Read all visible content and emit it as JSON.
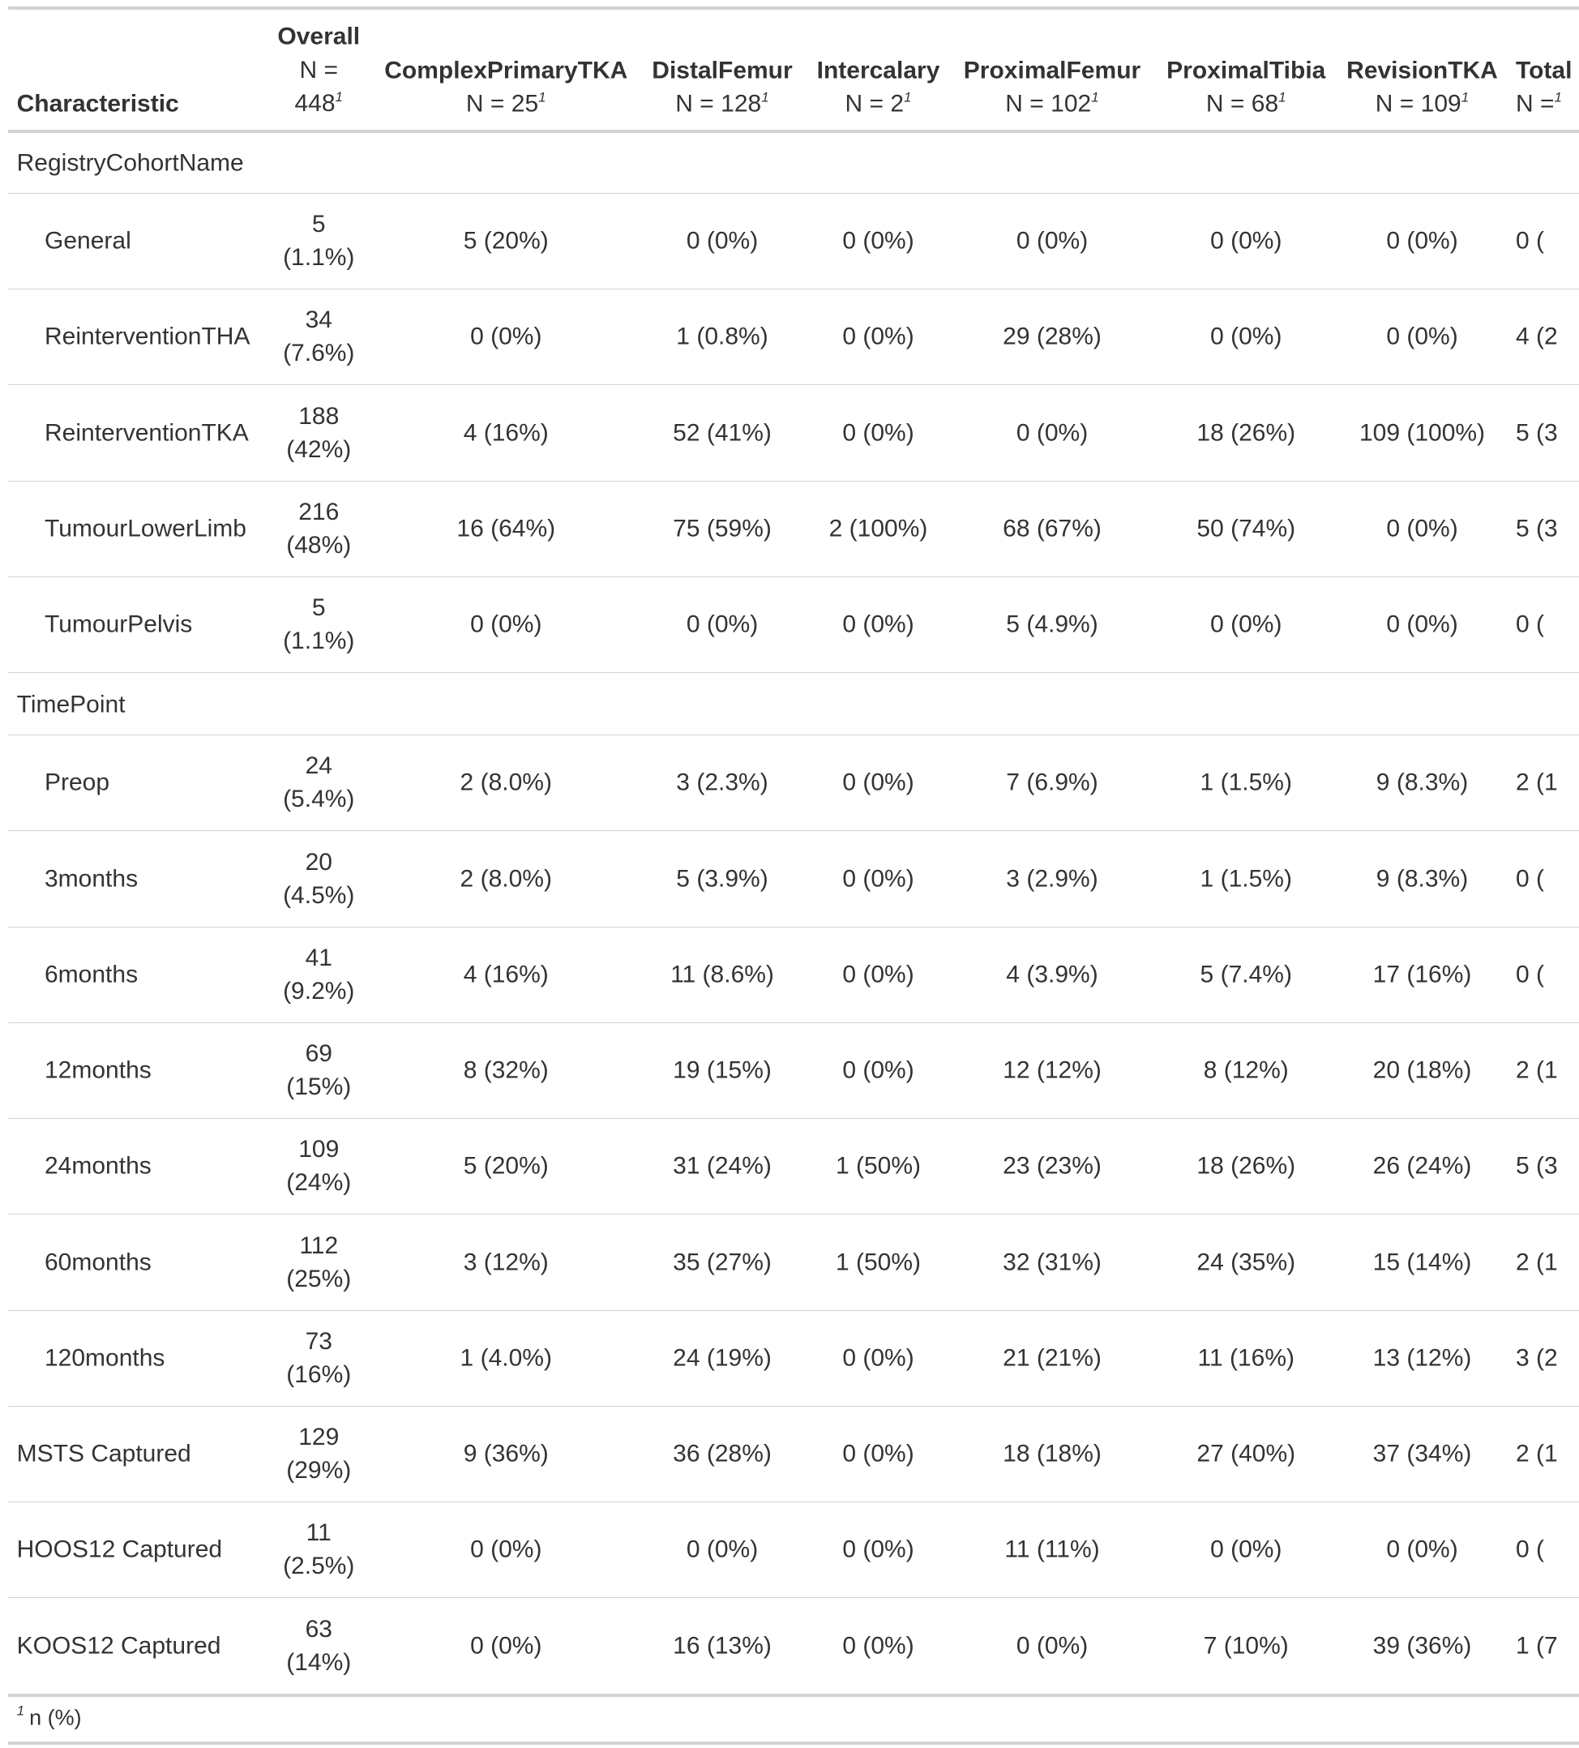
{
  "table": {
    "header": {
      "characteristic": "Characteristic",
      "columns": [
        {
          "label": "Overall",
          "n": "N = 448"
        },
        {
          "label": "ComplexPrimaryTKA",
          "n": "N = 25"
        },
        {
          "label": "DistalFemur",
          "n": "N = 128"
        },
        {
          "label": "Intercalary",
          "n": "N = 2"
        },
        {
          "label": "ProximalFemur",
          "n": "N = 102"
        },
        {
          "label": "ProximalTibia",
          "n": "N = 68"
        },
        {
          "label": "RevisionTKA",
          "n": "N = 109"
        },
        {
          "label": "Total",
          "n": "N ="
        }
      ]
    },
    "sections": [
      {
        "label": "RegistryCohortName",
        "rows": [
          {
            "label": "General",
            "cells": [
              "5 (1.1%)",
              "5 (20%)",
              "0 (0%)",
              "0 (0%)",
              "0 (0%)",
              "0 (0%)",
              "0 (0%)",
              "0 ("
            ]
          },
          {
            "label": "ReinterventionTHA",
            "cells": [
              "34 (7.6%)",
              "0 (0%)",
              "1 (0.8%)",
              "0 (0%)",
              "29 (28%)",
              "0 (0%)",
              "0 (0%)",
              "4 (2"
            ]
          },
          {
            "label": "ReinterventionTKA",
            "cells": [
              "188 (42%)",
              "4 (16%)",
              "52 (41%)",
              "0 (0%)",
              "0 (0%)",
              "18 (26%)",
              "109 (100%)",
              "5 (3"
            ]
          },
          {
            "label": "TumourLowerLimb",
            "cells": [
              "216 (48%)",
              "16 (64%)",
              "75 (59%)",
              "2 (100%)",
              "68 (67%)",
              "50 (74%)",
              "0 (0%)",
              "5 (3"
            ]
          },
          {
            "label": "TumourPelvis",
            "cells": [
              "5 (1.1%)",
              "0 (0%)",
              "0 (0%)",
              "0 (0%)",
              "5 (4.9%)",
              "0 (0%)",
              "0 (0%)",
              "0 ("
            ]
          }
        ]
      },
      {
        "label": "TimePoint",
        "rows": [
          {
            "label": "Preop",
            "cells": [
              "24 (5.4%)",
              "2 (8.0%)",
              "3 (2.3%)",
              "0 (0%)",
              "7 (6.9%)",
              "1 (1.5%)",
              "9 (8.3%)",
              "2 (1"
            ]
          },
          {
            "label": "3months",
            "cells": [
              "20 (4.5%)",
              "2 (8.0%)",
              "5 (3.9%)",
              "0 (0%)",
              "3 (2.9%)",
              "1 (1.5%)",
              "9 (8.3%)",
              "0 ("
            ]
          },
          {
            "label": "6months",
            "cells": [
              "41 (9.2%)",
              "4 (16%)",
              "11 (8.6%)",
              "0 (0%)",
              "4 (3.9%)",
              "5 (7.4%)",
              "17 (16%)",
              "0 ("
            ]
          },
          {
            "label": "12months",
            "cells": [
              "69 (15%)",
              "8 (32%)",
              "19 (15%)",
              "0 (0%)",
              "12 (12%)",
              "8 (12%)",
              "20 (18%)",
              "2 (1"
            ]
          },
          {
            "label": "24months",
            "cells": [
              "109 (24%)",
              "5 (20%)",
              "31 (24%)",
              "1 (50%)",
              "23 (23%)",
              "18 (26%)",
              "26 (24%)",
              "5 (3"
            ]
          },
          {
            "label": "60months",
            "cells": [
              "112 (25%)",
              "3 (12%)",
              "35 (27%)",
              "1 (50%)",
              "32 (31%)",
              "24 (35%)",
              "15 (14%)",
              "2 (1"
            ]
          },
          {
            "label": "120months",
            "cells": [
              "73 (16%)",
              "1 (4.0%)",
              "24 (19%)",
              "0 (0%)",
              "21 (21%)",
              "11 (16%)",
              "13 (12%)",
              "3 (2"
            ]
          }
        ]
      }
    ],
    "rows": [
      {
        "label": "MSTS Captured",
        "cells": [
          "129 (29%)",
          "9 (36%)",
          "36 (28%)",
          "0 (0%)",
          "18 (18%)",
          "27 (40%)",
          "37 (34%)",
          "2 (1"
        ]
      },
      {
        "label": "HOOS12 Captured",
        "cells": [
          "11 (2.5%)",
          "0 (0%)",
          "0 (0%)",
          "0 (0%)",
          "11 (11%)",
          "0 (0%)",
          "0 (0%)",
          "0 ("
        ]
      },
      {
        "label": "KOOS12 Captured",
        "cells": [
          "63 (14%)",
          "0 (0%)",
          "16 (13%)",
          "0 (0%)",
          "0 (0%)",
          "7 (10%)",
          "39 (36%)",
          "1 (7"
        ]
      }
    ],
    "footnote": {
      "mark": "1",
      "text": "n (%)"
    }
  }
}
